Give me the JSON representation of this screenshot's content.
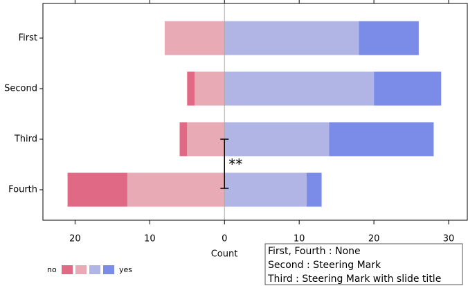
{
  "chart_data": {
    "type": "diverging_bar",
    "categories": [
      "First",
      "Second",
      "Third",
      "Fourth"
    ],
    "series": [
      {
        "color": "#e06a85",
        "side": "left",
        "values": [
          0,
          1,
          1,
          8
        ]
      },
      {
        "color": "#e8aab5",
        "side": "left",
        "values": [
          8,
          4,
          5,
          13
        ]
      },
      {
        "color": "#b0b5e5",
        "side": "right",
        "values": [
          18,
          20,
          14,
          11
        ]
      },
      {
        "color": "#7a8be8",
        "side": "right",
        "values": [
          8,
          9,
          14,
          2
        ]
      }
    ],
    "x_label": "Count",
    "xlim": [
      -24.3,
      32.5
    ],
    "xticks": [
      {
        "value": -20,
        "label": "20"
      },
      {
        "value": -10,
        "label": "10"
      },
      0,
      10,
      20,
      30
    ],
    "legend": {
      "left_label": "no",
      "right_label": "yes"
    },
    "annotation": {
      "text": "**",
      "from_category": 2,
      "to_category": 3
    },
    "note_lines": [
      "First, Fourth : None",
      "Second : Steering Mark",
      "Third : Steering Mark with slide title"
    ]
  }
}
